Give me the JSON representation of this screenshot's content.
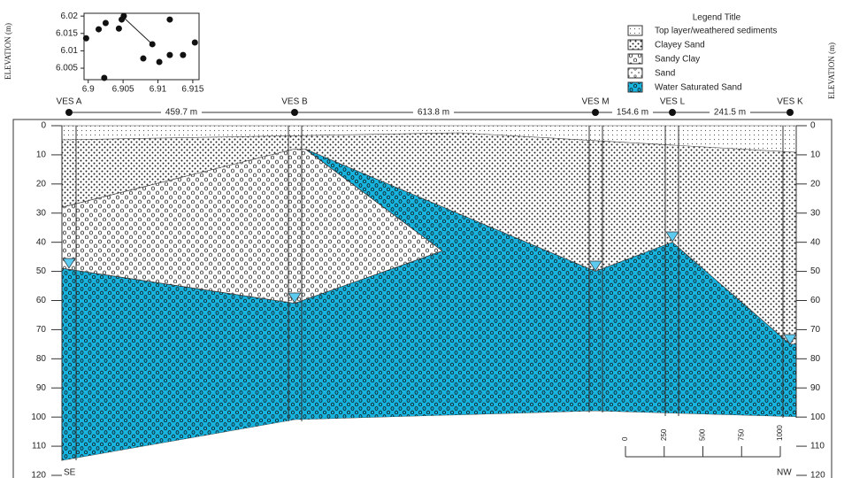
{
  "inset": {
    "y_label": "ELEVATION (m)",
    "xlim": [
      6.8994,
      6.9159
    ],
    "ylim": [
      6.0017,
      6.0208
    ],
    "xticks": [
      6.9,
      6.905,
      6.91,
      6.915
    ],
    "yticks": [
      6.02,
      6.015,
      6.01,
      6.005
    ],
    "x": [
      6.8997,
      6.9015,
      6.9025,
      6.9048,
      6.9051,
      6.9044,
      6.9079,
      6.9092,
      6.9102,
      6.9117,
      6.9117,
      6.9136,
      6.9153,
      6.9023
    ],
    "y": [
      6.0136,
      6.0162,
      6.018,
      6.019,
      6.02,
      6.0164,
      6.0078,
      6.0119,
      6.0068,
      6.019,
      6.0088,
      6.0088,
      6.0124,
      6.0022
    ]
  },
  "legend": {
    "title": "Legend Title",
    "items": [
      "Top layer/weathered sediments",
      "Clayey Sand",
      "Sandy Clay",
      "Sand",
      "Water Saturated Sand"
    ]
  },
  "right_label": "ELEVATION (m)",
  "wells": [
    "VES A",
    "VES B",
    "VES M",
    "VES L",
    "VES K"
  ],
  "distances": [
    "459.7 m",
    "613.8 m",
    "154.6 m",
    "241.5 m"
  ],
  "section": {
    "depth_lim": [
      0,
      120
    ],
    "depth_ticks": [
      0,
      10,
      20,
      30,
      40,
      50,
      60,
      70,
      80,
      90,
      100,
      110,
      120
    ],
    "left_end": "SE",
    "right_end": "NW"
  },
  "scale_bar": {
    "lim": [
      0,
      1000
    ],
    "ticks": [
      0,
      250,
      500,
      750,
      1000
    ]
  }
}
